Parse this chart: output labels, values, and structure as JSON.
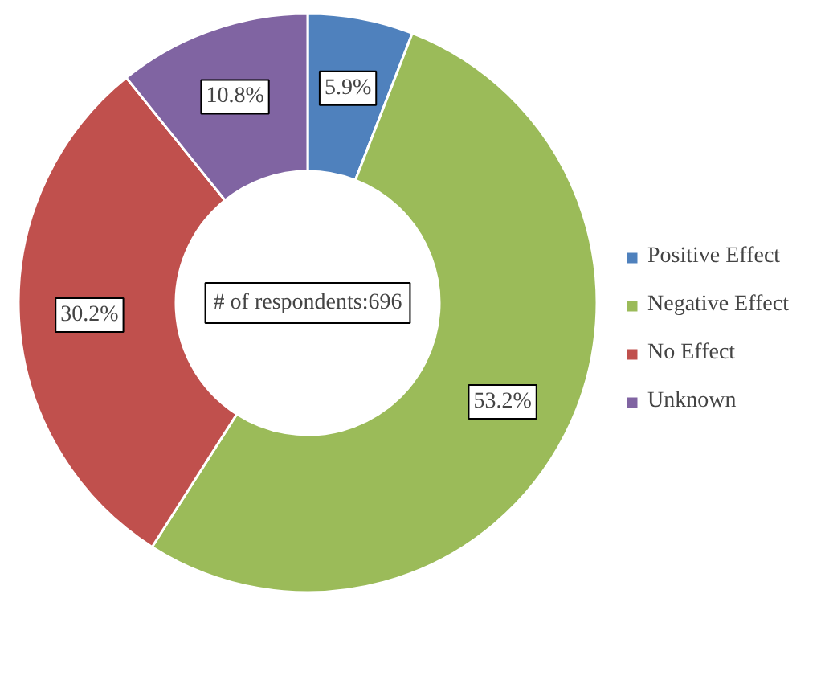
{
  "chart_data": {
    "type": "donut",
    "categories": [
      "Positive Effect",
      "Negative Effect",
      "No Effect",
      "Unknown"
    ],
    "values": [
      5.9,
      53.2,
      30.2,
      10.8
    ],
    "colors": [
      "#4f81bd",
      "#9bbb59",
      "#c0504d",
      "#8064a2"
    ],
    "value_labels": [
      "5.9%",
      "53.2%",
      "30.2%",
      "10.8%"
    ],
    "annotations": [
      "# of respondents:696"
    ],
    "legend": "right"
  }
}
